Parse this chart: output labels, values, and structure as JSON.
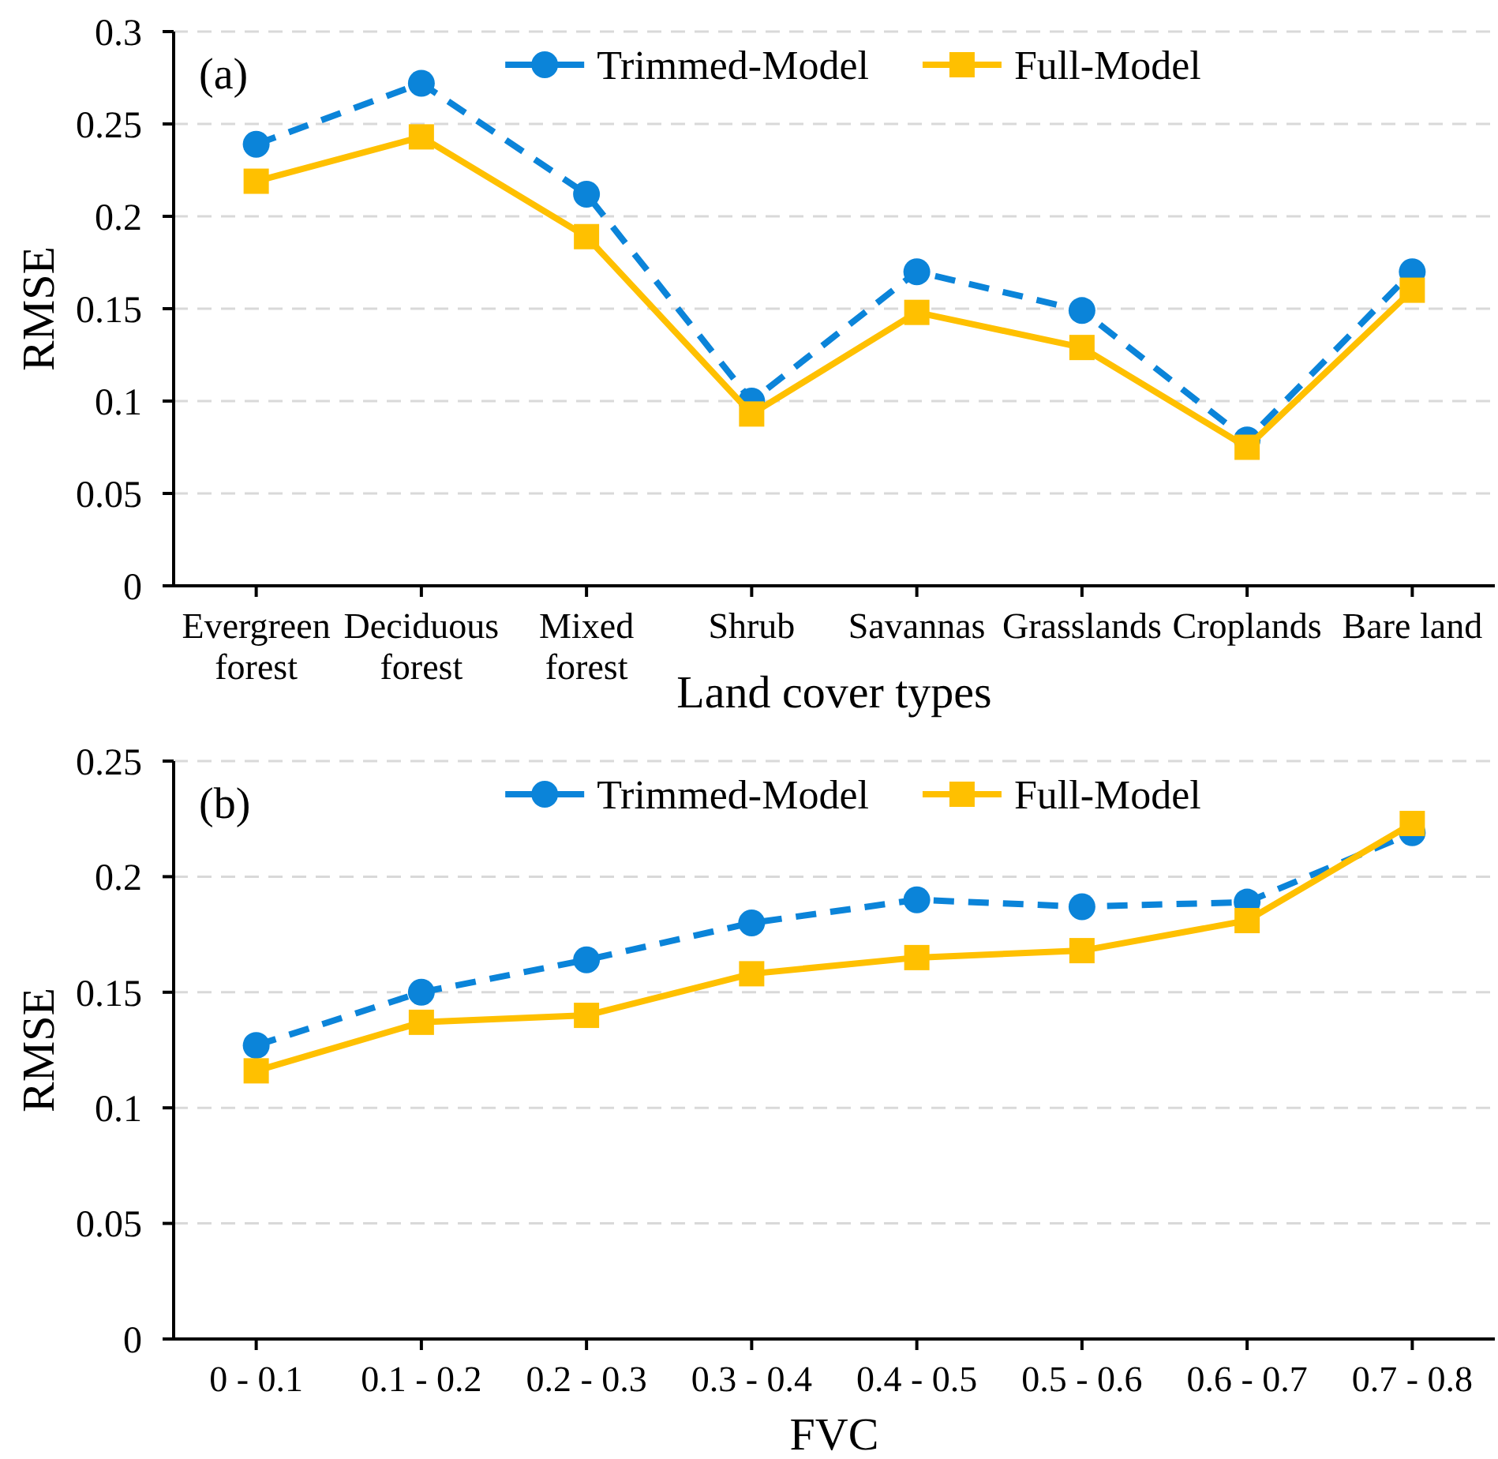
{
  "chart_data": [
    {
      "type": "line",
      "annotations": [
        "(a)"
      ],
      "xlabel": "Land cover types",
      "ylabel": "RMSE",
      "categories": [
        "Evergreen forest",
        "Deciduous forest",
        "Mixed forest",
        "Shrub",
        "Savannas",
        "Grasslands",
        "Croplands",
        "Bare land"
      ],
      "series": [
        {
          "name": "Trimmed-Model",
          "color": "#0b84d9",
          "marker": "circle",
          "line_style": "dashed",
          "values": [
            0.239,
            0.272,
            0.212,
            0.1,
            0.17,
            0.149,
            0.079,
            0.17
          ]
        },
        {
          "name": "Full-Model",
          "color": "#ffc000",
          "marker": "square",
          "line_style": "solid",
          "values": [
            0.219,
            0.243,
            0.189,
            0.093,
            0.148,
            0.129,
            0.075,
            0.16
          ]
        }
      ],
      "ylim": [
        0,
        0.3
      ],
      "yticks": [
        0,
        0.05,
        0.1,
        0.15,
        0.2,
        0.25,
        0.3
      ],
      "grid": "y",
      "legend": "top"
    },
    {
      "type": "line",
      "annotations": [
        "(b)"
      ],
      "xlabel": "FVC",
      "ylabel": "RMSE",
      "categories": [
        "0 - 0.1",
        "0.1 - 0.2",
        "0.2 - 0.3",
        "0.3 - 0.4",
        "0.4 - 0.5",
        "0.5 - 0.6",
        "0.6 - 0.7",
        "0.7 - 0.8"
      ],
      "series": [
        {
          "name": "Trimmed-Model",
          "color": "#0b84d9",
          "marker": "circle",
          "line_style": "dashed",
          "values": [
            0.127,
            0.15,
            0.164,
            0.18,
            0.19,
            0.187,
            0.189,
            0.219
          ]
        },
        {
          "name": "Full-Model",
          "color": "#ffc000",
          "marker": "square",
          "line_style": "solid",
          "values": [
            0.116,
            0.137,
            0.14,
            0.158,
            0.165,
            0.168,
            0.181,
            0.223
          ]
        }
      ],
      "ylim": [
        0,
        0.25
      ],
      "yticks": [
        0,
        0.05,
        0.1,
        0.15,
        0.2,
        0.25
      ],
      "grid": "y",
      "legend": "top"
    }
  ]
}
